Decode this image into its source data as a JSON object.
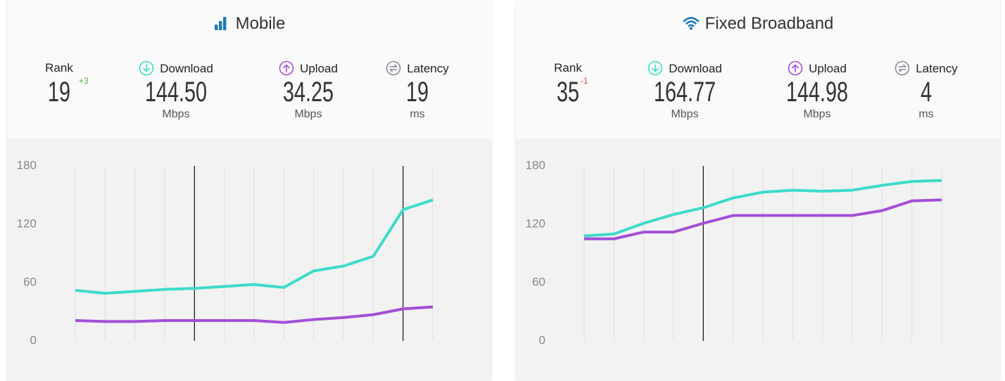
{
  "panels": [
    {
      "title": "Mobile",
      "rank": {
        "label": "Rank",
        "value": "19",
        "change": "+3"
      },
      "stats": [
        {
          "label": "Download",
          "value": "144.50",
          "unit": "Mbps"
        },
        {
          "label": "Upload",
          "value": "34.25",
          "unit": "Mbps"
        },
        {
          "label": "Latency",
          "value": "19",
          "unit": "ms"
        }
      ]
    },
    {
      "title": "Fixed Broadband",
      "rank": {
        "label": "Rank",
        "value": "35",
        "change": "-1"
      },
      "stats": [
        {
          "label": "Download",
          "value": "164.77",
          "unit": "Mbps"
        },
        {
          "label": "Upload",
          "value": "144.98",
          "unit": "Mbps"
        },
        {
          "label": "Latency",
          "value": "4",
          "unit": "ms"
        }
      ]
    }
  ],
  "chart_data": [
    {
      "type": "line",
      "categories": [
        null,
        null,
        null,
        null,
        null,
        null,
        null,
        null,
        null,
        null,
        null,
        null,
        null
      ],
      "series": [
        {
          "name": "Download",
          "color": "#3ddbc9",
          "values": [
            52,
            49,
            51,
            53,
            54,
            56,
            58,
            55,
            72,
            77,
            87,
            135,
            145
          ]
        },
        {
          "name": "Upload",
          "color": "#a24fd6",
          "values": [
            21,
            20,
            20,
            21,
            21,
            21,
            21,
            19,
            22,
            24,
            27,
            33,
            35
          ]
        }
      ],
      "markers": [
        4,
        11
      ],
      "ylim": [
        0,
        180
      ],
      "yticks": [
        0,
        60,
        120,
        180
      ],
      "grid": true
    },
    {
      "type": "line",
      "categories": [
        null,
        null,
        null,
        null,
        null,
        null,
        null,
        null,
        null,
        null,
        null,
        null,
        null
      ],
      "series": [
        {
          "name": "Download",
          "color": "#3ddbc9",
          "values": [
            108,
            110,
            121,
            130,
            137,
            147,
            153,
            155,
            154,
            155,
            160,
            164,
            165
          ]
        },
        {
          "name": "Upload",
          "color": "#a24fd6",
          "values": [
            105,
            105,
            112,
            112,
            121,
            129,
            129,
            129,
            129,
            129,
            134,
            144,
            145
          ]
        }
      ],
      "markers": [
        4
      ],
      "ylim": [
        0,
        180
      ],
      "yticks": [
        0,
        60,
        120,
        180
      ],
      "grid": true
    }
  ]
}
